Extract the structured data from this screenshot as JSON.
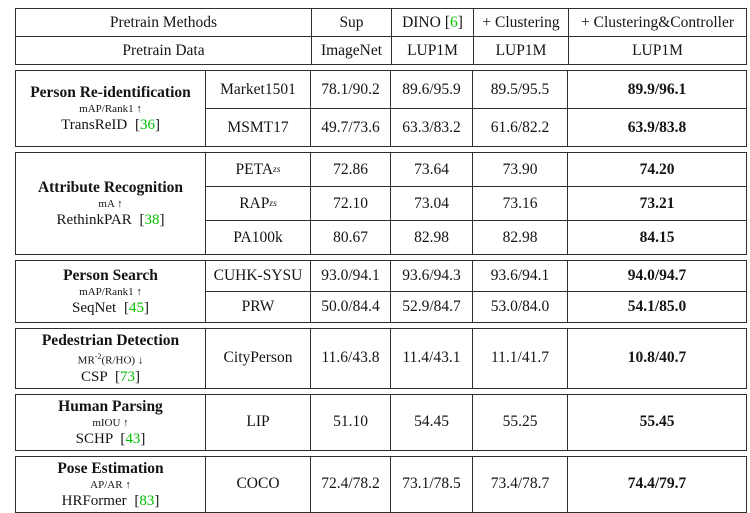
{
  "colors": {
    "citation_green": "#00bf00",
    "border": "#2e2e2e",
    "text": "#141414",
    "background": "#ffffff"
  },
  "format": {
    "bracket_open": "[",
    "bracket_close": "]"
  },
  "table": {
    "header": {
      "methods_label": "Pretrain Methods",
      "data_label": "Pretrain Data",
      "methods": [
        {
          "name": "Sup"
        },
        {
          "name": "DINO",
          "cite": "6"
        },
        {
          "name": "+ Clustering"
        },
        {
          "name": "+ Clustering&Controller"
        }
      ],
      "data": [
        "ImageNet",
        "LUP1M",
        "LUP1M",
        "LUP1M"
      ]
    },
    "sections": [
      {
        "task": "Person Re-identification",
        "metric": "mAP/Rank1 ↑",
        "model": "TransReID",
        "cite": "36",
        "rows": [
          {
            "dataset": "Market1501",
            "values": [
              "78.1/90.2",
              "89.6/95.9",
              "89.5/95.5",
              "89.9/96.1"
            ]
          },
          {
            "dataset": "MSMT17",
            "values": [
              "49.7/73.6",
              "63.3/83.2",
              "61.6/82.2",
              "63.9/83.8"
            ]
          }
        ]
      },
      {
        "task": "Attribute Recognition",
        "metric": "mA ↑",
        "model": "RethinkPAR",
        "cite": "38",
        "rows": [
          {
            "dataset": "PETA",
            "dataset_sub": "zs",
            "values": [
              "72.86",
              "73.64",
              "73.90",
              "74.20"
            ]
          },
          {
            "dataset": "RAP",
            "dataset_sub": "zs",
            "values": [
              "72.10",
              "73.04",
              "73.16",
              "73.21"
            ]
          },
          {
            "dataset": "PA100k",
            "values": [
              "80.67",
              "82.98",
              "82.98",
              "84.15"
            ]
          }
        ]
      },
      {
        "task": "Person Search",
        "metric": "mAP/Rank1 ↑",
        "model": "SeqNet",
        "cite": "45",
        "rows": [
          {
            "dataset": "CUHK-SYSU",
            "values": [
              "93.0/94.1",
              "93.6/94.3",
              "93.6/94.1",
              "94.0/94.7"
            ]
          },
          {
            "dataset": "PRW",
            "values": [
              "50.0/84.4",
              "52.9/84.7",
              "53.0/84.0",
              "54.1/85.0"
            ]
          }
        ]
      },
      {
        "task": "Pedestrian Detection",
        "metric_pre": "MR",
        "metric_sup": "-2",
        "metric_post": "(R/HO) ↓",
        "model": "CSP",
        "cite": "73",
        "rows": [
          {
            "dataset": "CityPerson",
            "values": [
              "11.6/43.8",
              "11.4/43.1",
              "11.1/41.7",
              "10.8/40.7"
            ]
          }
        ]
      },
      {
        "task": "Human Parsing",
        "metric": "mIOU ↑",
        "model": "SCHP",
        "cite": "43",
        "rows": [
          {
            "dataset": "LIP",
            "values": [
              "51.10",
              "54.45",
              "55.25",
              "55.45"
            ]
          }
        ]
      },
      {
        "task": "Pose Estimation",
        "metric": "AP/AR ↑",
        "model": "HRFormer",
        "cite": "83",
        "rows": [
          {
            "dataset": "COCO",
            "values": [
              "72.4/78.2",
              "73.1/78.5",
              "73.4/78.7",
              "74.4/79.7"
            ]
          }
        ]
      }
    ]
  }
}
